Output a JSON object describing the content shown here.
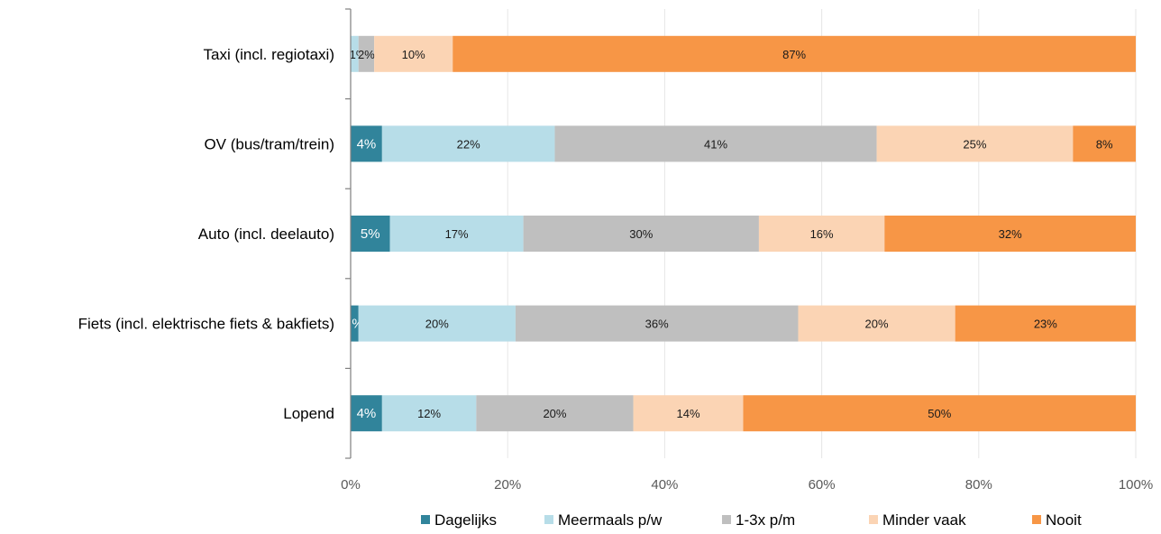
{
  "chart_data": {
    "type": "bar",
    "orientation": "horizontal",
    "stacked": true,
    "categories": [
      "Taxi (incl. regiotaxi)",
      "OV (bus/tram/trein)",
      "Auto (incl. deelauto)",
      "Fiets (incl. elektrische fiets & bakfiets)",
      "Lopend"
    ],
    "series": [
      {
        "name": "Dagelijks",
        "color": "#31849B",
        "values": [
          0,
          4,
          5,
          1,
          4
        ],
        "labels": [
          "",
          "4%",
          "5%",
          "%",
          "4%"
        ]
      },
      {
        "name": "Meermaals p/w",
        "color": "#B7DDE8",
        "values": [
          1,
          22,
          17,
          20,
          12
        ],
        "labels": [
          "1%",
          "22%",
          "17%",
          "20%",
          "12%"
        ]
      },
      {
        "name": "1-3x p/m",
        "color": "#BFBFBF",
        "values": [
          2,
          41,
          30,
          36,
          20
        ],
        "labels": [
          "2%",
          "41%",
          "30%",
          "36%",
          "20%"
        ]
      },
      {
        "name": "Minder vaak",
        "color": "#FBD4B4",
        "values": [
          10,
          25,
          16,
          20,
          14
        ],
        "labels": [
          "10%",
          "25%",
          "16%",
          "20%",
          "14%"
        ]
      },
      {
        "name": "Nooit",
        "color": "#F79646",
        "values": [
          87,
          8,
          32,
          23,
          50
        ],
        "labels": [
          "87%",
          "8%",
          "32%",
          "23%",
          "50%"
        ]
      }
    ],
    "xlim": [
      0,
      100
    ],
    "xticks": [
      "0%",
      "20%",
      "40%",
      "60%",
      "80%",
      "100%"
    ],
    "grid": true,
    "legend_position": "bottom",
    "title": "",
    "xlabel": "",
    "ylabel": ""
  }
}
